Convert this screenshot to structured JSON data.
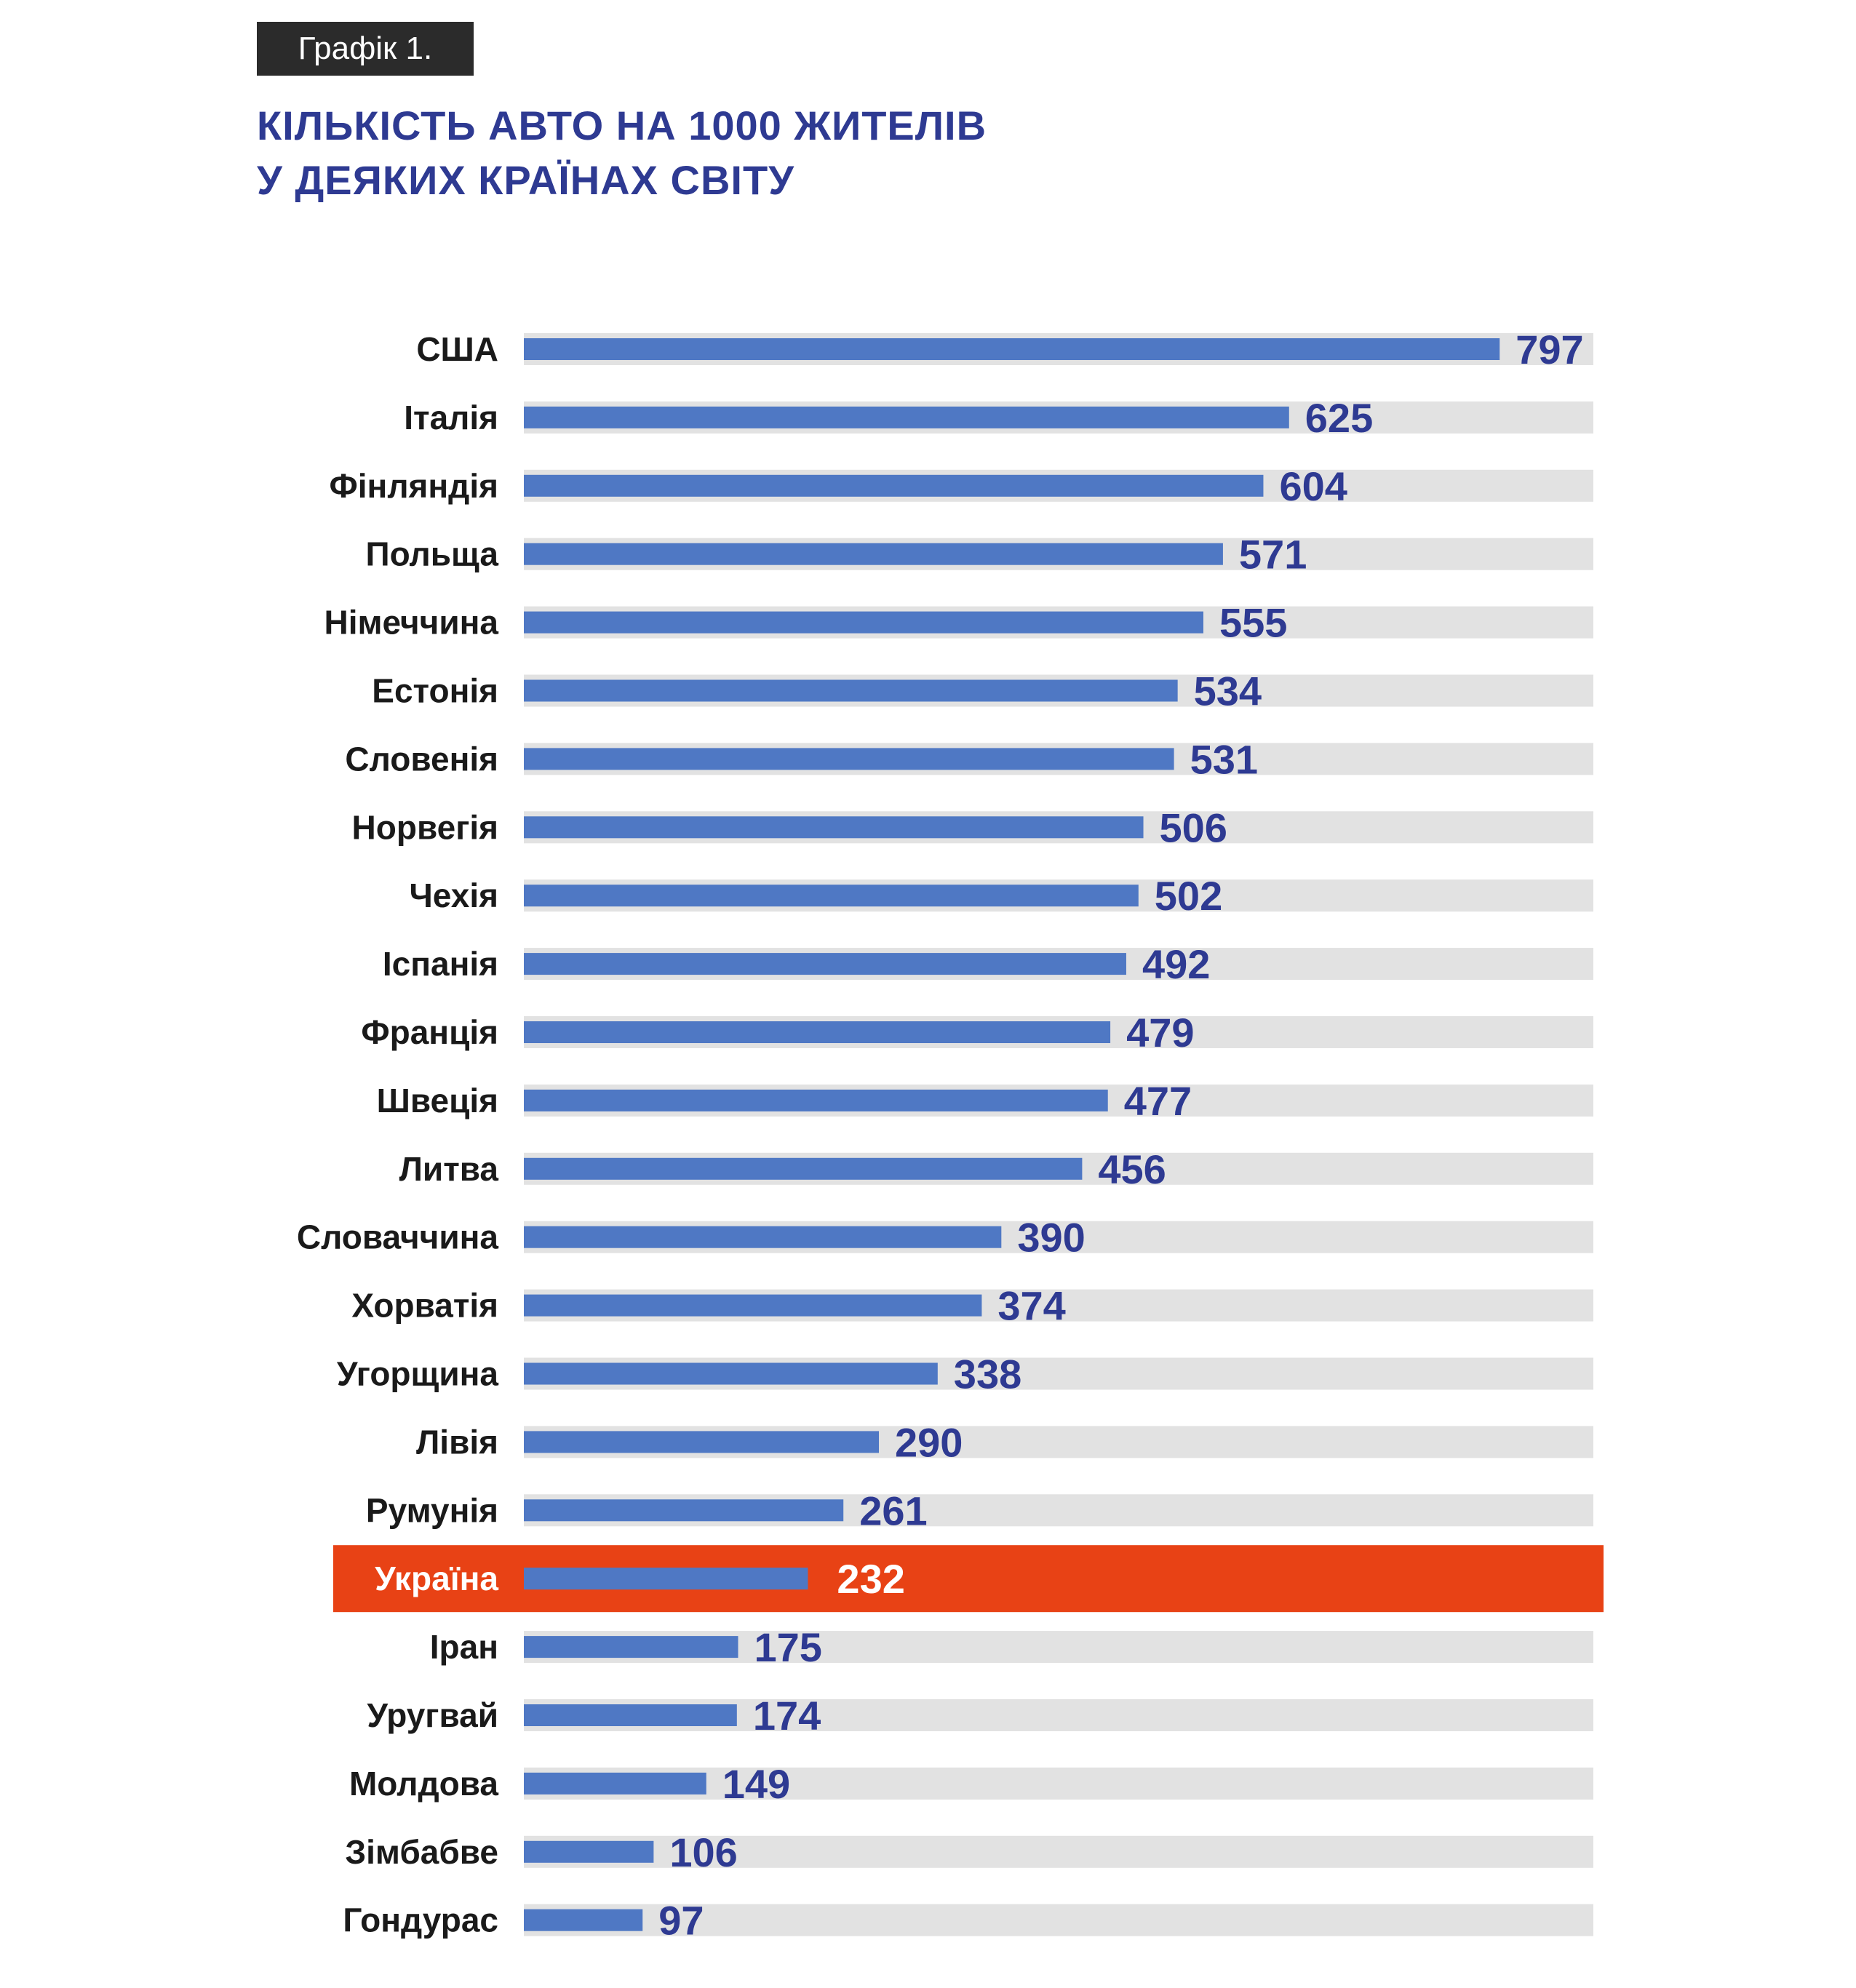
{
  "graph_label": "Графік 1.",
  "title_lines": [
    "КІЛЬКІСТЬ АВТО НА 1000 ЖИТЕЛІВ",
    "У ДЕЯКИХ КРАЇНАХ СВІТУ"
  ],
  "colors": {
    "bar": "#4f78c4",
    "track": "#e2e2e2",
    "value_text": "#2e3a92",
    "label_text": "#1a1a1a",
    "highlight": "#e84215",
    "highlight_text": "#ffffff"
  },
  "chart_data": {
    "type": "bar",
    "orientation": "horizontal",
    "title": "КІЛЬКІСТЬ АВТО НА 1000 ЖИТЕЛІВ У ДЕЯКИХ КРАЇНАХ СВІТУ",
    "xlim": [
      0,
      880
    ],
    "highlight_category": "Україна",
    "categories": [
      "США",
      "Італія",
      "Фінляндія",
      "Польща",
      "Німеччина",
      "Естонія",
      "Словенія",
      "Норвегія",
      "Чехія",
      "Іспанія",
      "Франція",
      "Швеція",
      "Литва",
      "Словаччина",
      "Хорватія",
      "Угорщина",
      "Лівія",
      "Румунія",
      "Україна",
      "Іран",
      "Уругвай",
      "Молдова",
      "Зімбабве",
      "Гондурас"
    ],
    "values": [
      797,
      625,
      604,
      571,
      555,
      534,
      531,
      506,
      502,
      492,
      479,
      477,
      456,
      390,
      374,
      338,
      290,
      261,
      232,
      175,
      174,
      149,
      106,
      97
    ]
  }
}
